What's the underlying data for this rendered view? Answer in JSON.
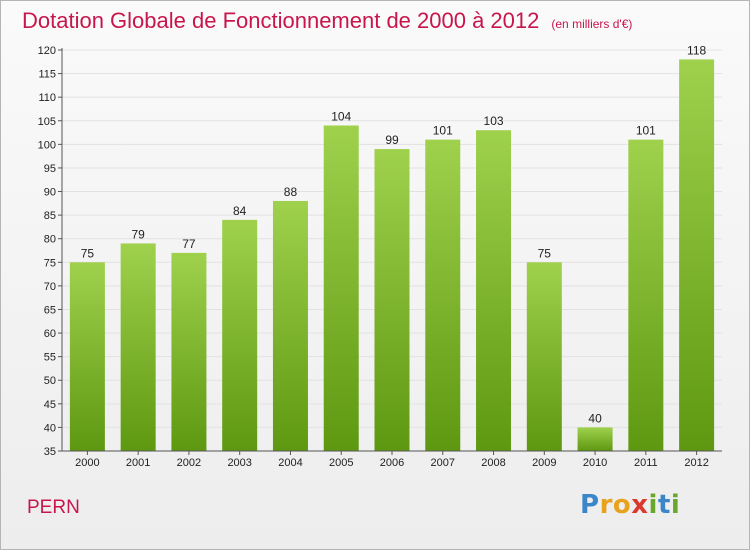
{
  "title": {
    "main": "Dotation Globale de Fonctionnement de 2000 à 2012",
    "unit": "(en milliers d'€)"
  },
  "commune": "PERN",
  "logo": {
    "letters": [
      "P",
      "r",
      "o",
      "x",
      "i",
      "t",
      "i"
    ],
    "colors": [
      "#3a86c8",
      "#e9a21b",
      "#e9a21b",
      "#d93a2b",
      "#6aa82d",
      "#3a86c8",
      "#6aa82d"
    ]
  },
  "colors": {
    "title": "#c8164d",
    "bar_top": "#9fd14d",
    "bar_bottom": "#5e9811",
    "axis": "#555555",
    "grid": "#e2e2e2"
  },
  "chart_data": {
    "type": "bar",
    "title": "Dotation Globale de Fonctionnement de 2000 à 2012",
    "subtitle": "(en milliers d'€)",
    "categories": [
      "2000",
      "2001",
      "2002",
      "2003",
      "2004",
      "2005",
      "2006",
      "2007",
      "2008",
      "2009",
      "2010",
      "2011",
      "2012"
    ],
    "values": [
      75,
      79,
      77,
      84,
      88,
      104,
      99,
      101,
      103,
      75,
      40,
      101,
      118
    ],
    "ylim": [
      35,
      120
    ],
    "yticks": [
      35,
      40,
      45,
      50,
      55,
      60,
      65,
      70,
      75,
      80,
      85,
      90,
      95,
      100,
      105,
      110,
      115,
      120
    ],
    "grid": true,
    "data_labels": true,
    "legend": "none"
  }
}
